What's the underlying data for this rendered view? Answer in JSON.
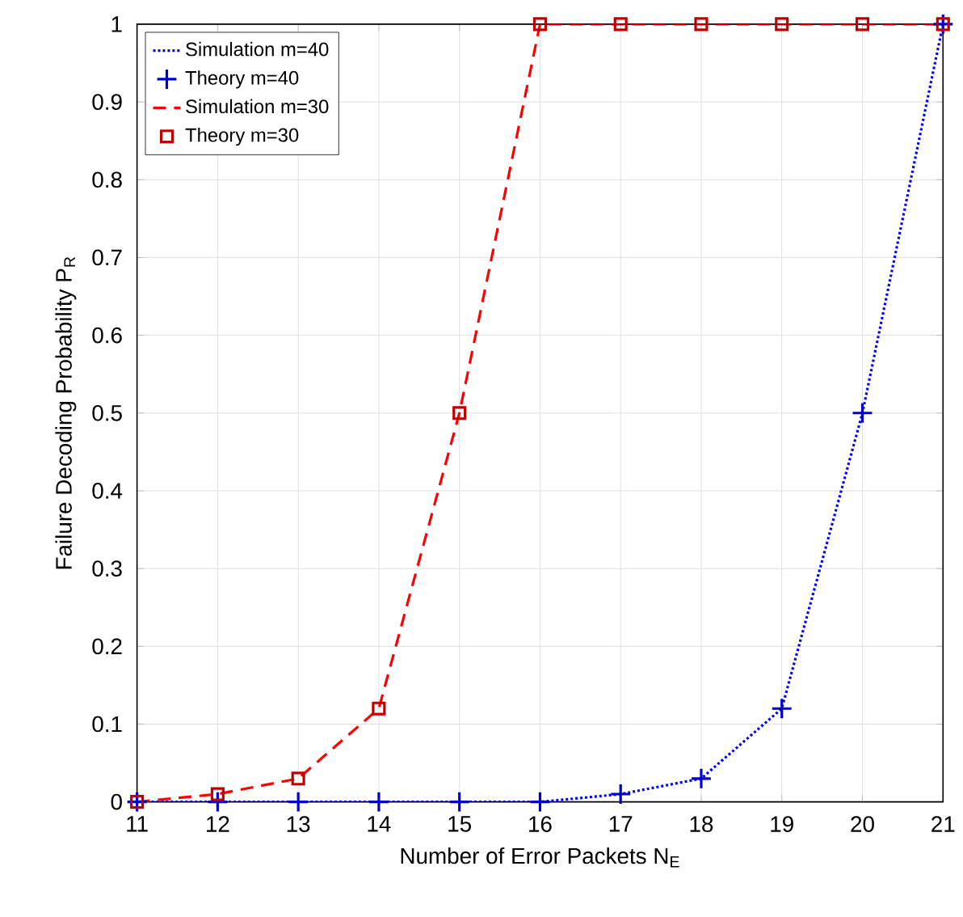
{
  "chart_data": {
    "type": "line",
    "xlabel": "Number of Error Packets N$_{E}$",
    "ylabel": "Failure Decoding Probability P$_{R}$",
    "x": [
      11,
      12,
      13,
      14,
      15,
      16,
      17,
      18,
      19,
      20,
      21
    ],
    "series": [
      {
        "name": "Simulation m=40",
        "color": "#0000ff",
        "line_style": "dotted",
        "marker": "none",
        "values": [
          0,
          0,
          0,
          0,
          0,
          0,
          0.01,
          0.03,
          0.12,
          0.5,
          1
        ]
      },
      {
        "name": "Theory  m=40",
        "type": "scatter",
        "color": "#0000cc",
        "marker": "cross",
        "values": [
          0,
          0,
          0,
          0,
          0,
          0,
          0.01,
          0.03,
          0.12,
          0.5,
          1
        ]
      },
      {
        "name": "Simulation m=30",
        "color": "#ff0000",
        "line_style": "dashed",
        "marker": "none",
        "values": [
          0,
          0.01,
          0.03,
          0.12,
          0.5,
          1,
          1,
          1,
          1,
          1,
          1
        ]
      },
      {
        "name": "Theory m=30",
        "type": "scatter",
        "color": "#c00000",
        "marker": "square",
        "values": [
          0,
          0.01,
          0.03,
          0.12,
          0.5,
          1,
          1,
          1,
          1,
          1,
          1
        ]
      }
    ],
    "xlim": [
      11,
      21
    ],
    "ylim": [
      0,
      1
    ],
    "xticks": [
      11,
      12,
      13,
      14,
      15,
      16,
      17,
      18,
      19,
      20,
      21
    ],
    "yticks": [
      0,
      0.1,
      0.2,
      0.3,
      0.4,
      0.5,
      0.6,
      0.7,
      0.8,
      0.9,
      1
    ],
    "grid": true,
    "legend": "top left"
  }
}
